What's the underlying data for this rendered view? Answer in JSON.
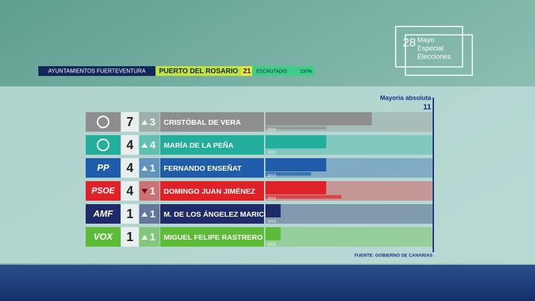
{
  "header": {
    "region": "AYUNTAMIENTOS FUERTEVENTURA",
    "municipality": "PUERTO DEL ROSARIO",
    "total_seats": 21,
    "counted_label": "ESCRUTADO:",
    "counted": "100%"
  },
  "logo": {
    "day": "28",
    "lines": [
      "Mayo",
      "Especial",
      "Elecciones"
    ]
  },
  "chart_data": {
    "type": "bar",
    "categories": [
      "CRISTÓBAL DE VERA",
      "MARÍA DE LA PEÑA",
      "FERNANDO ENSEÑAT",
      "DOMINGO JUAN JIMÉNEZ",
      "M. DE LOS ÁNGELEZ MARICHAL",
      "MIGUEL FELIPE RASTRERO"
    ],
    "parties": [
      null,
      null,
      "PP",
      "PSOE",
      "AMF",
      "VOX"
    ],
    "values": [
      7,
      4,
      4,
      4,
      1,
      1
    ],
    "colors": [
      "#8e8e8e",
      "#23ad9b",
      "#1f5dab",
      "#df2228",
      "#1f2a6b",
      "#5cbc37"
    ],
    "change": {
      "values": [
        3,
        4,
        1,
        -1,
        1,
        1
      ],
      "value_labels": [
        "3",
        "4",
        "1",
        "1",
        "1",
        "1"
      ]
    },
    "previous": {
      "label": "2019",
      "values": [
        4,
        0,
        3,
        5,
        0,
        0
      ]
    },
    "majority": {
      "label": "Mayoría absoluta",
      "value": 11
    },
    "source": "FUENTE: GOBIERNO DE CANARIAS"
  }
}
